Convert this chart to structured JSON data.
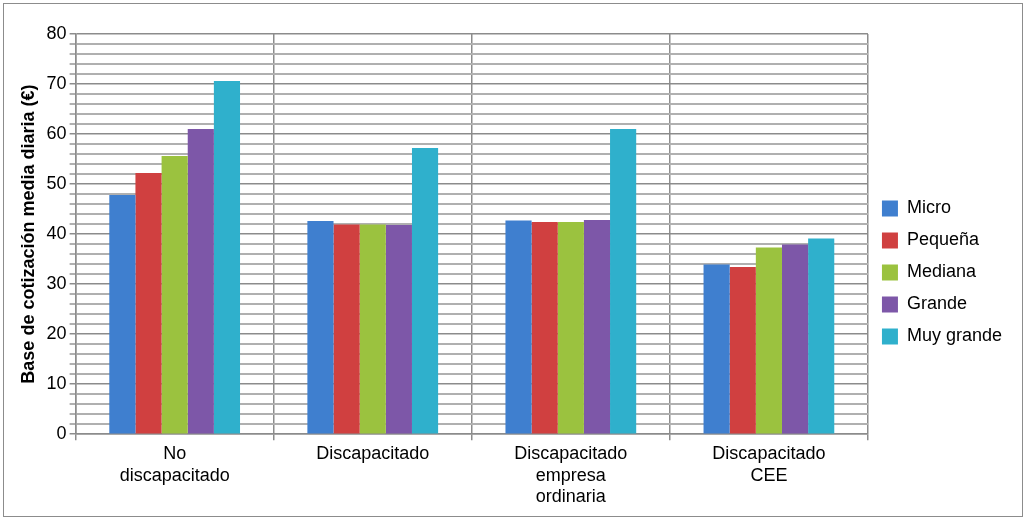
{
  "chart_data": {
    "type": "bar",
    "ylabel": "Base de cotización media diaria (€)",
    "categories": [
      "No discapacitado",
      "Discapacitado",
      "Discapacitado empresa ordinaria",
      "Discapacitado CEE"
    ],
    "series": [
      {
        "name": "Micro",
        "color": "#3f7fcf",
        "values": [
          47.8,
          42.6,
          42.7,
          33.9
        ]
      },
      {
        "name": "Pequeña",
        "color": "#d04040",
        "values": [
          52.2,
          41.9,
          42.4,
          33.4
        ]
      },
      {
        "name": "Mediana",
        "color": "#9bc23f",
        "values": [
          55.6,
          41.9,
          42.4,
          37.3
        ]
      },
      {
        "name": "Grande",
        "color": "#7d57a8",
        "values": [
          61,
          41.8,
          42.8,
          37.9
        ]
      },
      {
        "name": "Muy grande",
        "color": "#2fb0cc",
        "values": [
          70.6,
          57.2,
          61,
          39.1
        ]
      }
    ],
    "ylim": [
      0,
      80
    ],
    "yticks": [
      0,
      {
        "value": 2,
        "label": null
      },
      {
        "value": 4,
        "label": null
      },
      {
        "value": 6,
        "label": null
      },
      {
        "value": 8,
        "label": null
      },
      10,
      {
        "value": 12,
        "label": null
      },
      {
        "value": 14,
        "label": null
      },
      {
        "value": 16,
        "label": null
      },
      {
        "value": 18,
        "label": null
      },
      20,
      {
        "value": 22,
        "label": null
      },
      {
        "value": 24,
        "label": null
      },
      {
        "value": 26,
        "label": null
      },
      {
        "value": 28,
        "label": null
      },
      30,
      {
        "value": 32,
        "label": null
      },
      {
        "value": 34,
        "label": null
      },
      {
        "value": 36,
        "label": null
      },
      {
        "value": 38,
        "label": null
      },
      40,
      {
        "value": 42,
        "label": null
      },
      {
        "value": 44,
        "label": null
      },
      {
        "value": 46,
        "label": null
      },
      {
        "value": 48,
        "label": null
      },
      50,
      {
        "value": 52,
        "label": null
      },
      {
        "value": 54,
        "label": null
      },
      {
        "value": 56,
        "label": null
      },
      {
        "value": 58,
        "label": null
      },
      60,
      {
        "value": 62,
        "label": null
      },
      {
        "value": 64,
        "label": null
      },
      {
        "value": 66,
        "label": null
      },
      {
        "value": 68,
        "label": null
      },
      70,
      {
        "value": 72,
        "label": null
      },
      {
        "value": 74,
        "label": null
      },
      {
        "value": 76,
        "label": null
      },
      {
        "value": 78,
        "label": null
      },
      80
    ],
    "grid": true,
    "legend": "right"
  }
}
